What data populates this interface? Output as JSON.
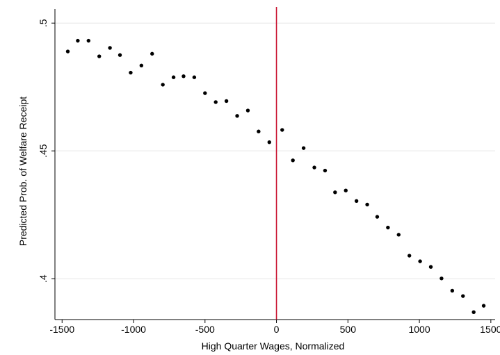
{
  "chart_data": {
    "type": "scatter",
    "title": "",
    "xlabel": "High Quarter Wages, Normalized",
    "ylabel": "Predicted Prob. of Welfare Receipt",
    "xlim": [
      -1550,
      1530
    ],
    "ylim": [
      0.384,
      0.5055
    ],
    "x_ticks": [
      -1500,
      -1000,
      -500,
      0,
      500,
      1000,
      1500
    ],
    "x_tick_labels": [
      "-1500",
      "-1000",
      "-500",
      "0",
      "500",
      "1000",
      "1500"
    ],
    "y_ticks": [
      0.4,
      0.45,
      0.5
    ],
    "y_tick_labels": [
      ".4",
      ".45",
      ".5"
    ],
    "grid": "horizontal",
    "legend": "none",
    "reference_line": {
      "x": 0,
      "color": "#c8102e"
    },
    "point_color": "#000000",
    "x": [
      -1460,
      -1390,
      -1315,
      -1240,
      -1165,
      -1095,
      -1020,
      -945,
      -870,
      -795,
      -720,
      -650,
      -575,
      -500,
      -425,
      -350,
      -275,
      -200,
      -125,
      -50,
      40,
      115,
      190,
      265,
      340,
      410,
      485,
      560,
      635,
      705,
      780,
      855,
      930,
      1005,
      1080,
      1155,
      1230,
      1305,
      1380,
      1450
    ],
    "y": [
      0.4889,
      0.4931,
      0.4931,
      0.487,
      0.4903,
      0.4875,
      0.4806,
      0.4834,
      0.488,
      0.4759,
      0.4788,
      0.4792,
      0.4788,
      0.4726,
      0.4691,
      0.4695,
      0.4637,
      0.4658,
      0.4576,
      0.4534,
      0.4582,
      0.4463,
      0.4511,
      0.4435,
      0.4423,
      0.4338,
      0.4345,
      0.4304,
      0.429,
      0.4242,
      0.42,
      0.4172,
      0.409,
      0.4068,
      0.4046,
      0.4001,
      0.3953,
      0.3932,
      0.3869,
      0.3894
    ]
  }
}
